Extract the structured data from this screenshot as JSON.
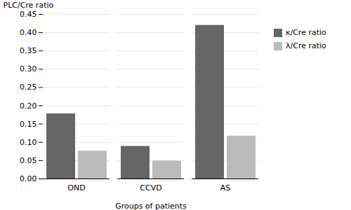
{
  "chart_data": {
    "type": "bar",
    "categories": [
      "OND",
      "CCVD",
      "AS"
    ],
    "series": [
      {
        "name": "κ/Cre ratio",
        "color": "#666666",
        "values": [
          0.178,
          0.089,
          0.42
        ]
      },
      {
        "name": "λ/Cre ratio",
        "color": "#bbbbbb",
        "values": [
          0.076,
          0.049,
          0.117
        ]
      }
    ],
    "xlabel": "Groups of patients",
    "ylabel": "PLC/Cre ratio",
    "ylim": [
      0,
      0.45
    ],
    "yticks": [
      {
        "value": 0,
        "label": "0.00"
      },
      0.05,
      {
        "value": 0.1,
        "label": "0.10"
      },
      0.15,
      {
        "value": 0.2,
        "label": "0.20"
      },
      0.25,
      {
        "value": 0.3,
        "label": "0.30"
      },
      0.35,
      {
        "value": 0.4,
        "label": "0.40"
      },
      0.45
    ],
    "grid": true,
    "legend": "right"
  }
}
